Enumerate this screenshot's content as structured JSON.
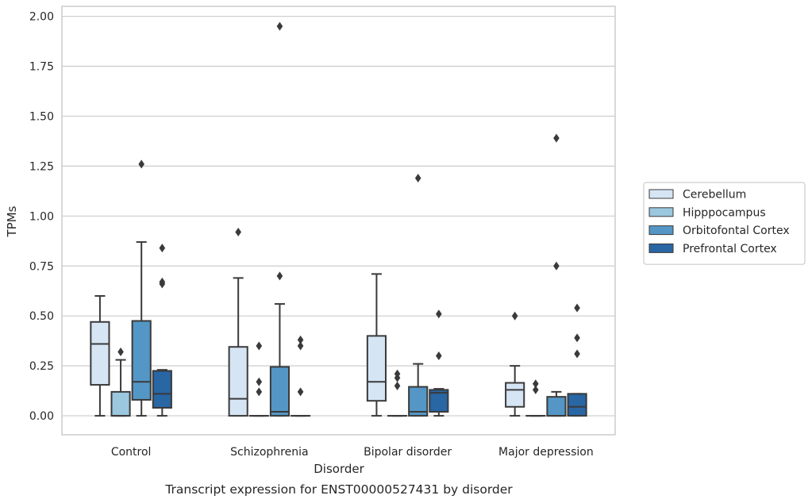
{
  "caption": "Transcript expression for ENST00000527431 by disorder",
  "chart_data": {
    "type": "box",
    "title": "",
    "xlabel": "Disorder",
    "ylabel": "TPMs",
    "ylim": [
      -0.095,
      2.05
    ],
    "yticks": [
      "0.00",
      "0.25",
      "0.50",
      "0.75",
      "1.00",
      "1.25",
      "1.50",
      "1.75",
      "2.00"
    ],
    "grid": "horizontal",
    "legend_position": "outside-right",
    "categories": [
      "Control",
      "Schizophrenia",
      "Bipolar disorder",
      "Major depression"
    ],
    "series": [
      {
        "name": "Cerebellum",
        "color": "#d6e5f4",
        "boxes": [
          {
            "min": 0.0,
            "q1": 0.155,
            "median": 0.36,
            "q3": 0.47,
            "max": 0.6,
            "outliers": []
          },
          {
            "min": 0.0,
            "q1": 0.0,
            "median": 0.085,
            "q3": 0.345,
            "max": 0.69,
            "outliers": [
              0.92
            ]
          },
          {
            "min": 0.0,
            "q1": 0.075,
            "median": 0.17,
            "q3": 0.4,
            "max": 0.71,
            "outliers": []
          },
          {
            "min": 0.0,
            "q1": 0.045,
            "median": 0.13,
            "q3": 0.165,
            "max": 0.25,
            "outliers": [
              0.5
            ]
          }
        ]
      },
      {
        "name": "Hipppocampus",
        "color": "#9bc7df",
        "boxes": [
          {
            "min": 0.0,
            "q1": 0.0,
            "median": 0.0,
            "q3": 0.12,
            "max": 0.28,
            "outliers": [
              0.32
            ]
          },
          {
            "min": 0.0,
            "q1": 0.0,
            "median": 0.0,
            "q3": 0.0,
            "max": 0.0,
            "outliers": [
              0.12,
              0.17,
              0.35
            ]
          },
          {
            "min": 0.0,
            "q1": 0.0,
            "median": 0.0,
            "q3": 0.0,
            "max": 0.0,
            "outliers": [
              0.15,
              0.19,
              0.21
            ]
          },
          {
            "min": 0.0,
            "q1": 0.0,
            "median": 0.0,
            "q3": 0.0,
            "max": 0.0,
            "outliers": [
              0.13,
              0.16
            ]
          }
        ]
      },
      {
        "name": "Orbitofontal Cortex",
        "color": "#5497c6",
        "boxes": [
          {
            "min": 0.0,
            "q1": 0.08,
            "median": 0.17,
            "q3": 0.475,
            "max": 0.87,
            "outliers": [
              1.26
            ]
          },
          {
            "min": 0.0,
            "q1": 0.0,
            "median": 0.02,
            "q3": 0.245,
            "max": 0.56,
            "outliers": [
              0.7,
              1.95
            ]
          },
          {
            "min": 0.0,
            "q1": 0.0,
            "median": 0.02,
            "q3": 0.145,
            "max": 0.26,
            "outliers": [
              1.19
            ]
          },
          {
            "min": 0.0,
            "q1": 0.0,
            "median": 0.0,
            "q3": 0.095,
            "max": 0.12,
            "outliers": [
              0.75,
              1.39
            ]
          }
        ]
      },
      {
        "name": "Prefrontal Cortex",
        "color": "#2966a4",
        "boxes": [
          {
            "min": 0.0,
            "q1": 0.04,
            "median": 0.11,
            "q3": 0.225,
            "max": 0.23,
            "outliers": [
              0.66,
              0.67,
              0.84
            ]
          },
          {
            "min": 0.0,
            "q1": 0.0,
            "median": 0.0,
            "q3": 0.0,
            "max": 0.0,
            "outliers": [
              0.12,
              0.35,
              0.38
            ]
          },
          {
            "min": 0.0,
            "q1": 0.02,
            "median": 0.115,
            "q3": 0.13,
            "max": 0.135,
            "outliers": [
              0.3,
              0.51
            ]
          },
          {
            "min": 0.0,
            "q1": 0.0,
            "median": 0.045,
            "q3": 0.11,
            "max": 0.11,
            "outliers": [
              0.31,
              0.39,
              0.54
            ]
          }
        ]
      }
    ]
  }
}
